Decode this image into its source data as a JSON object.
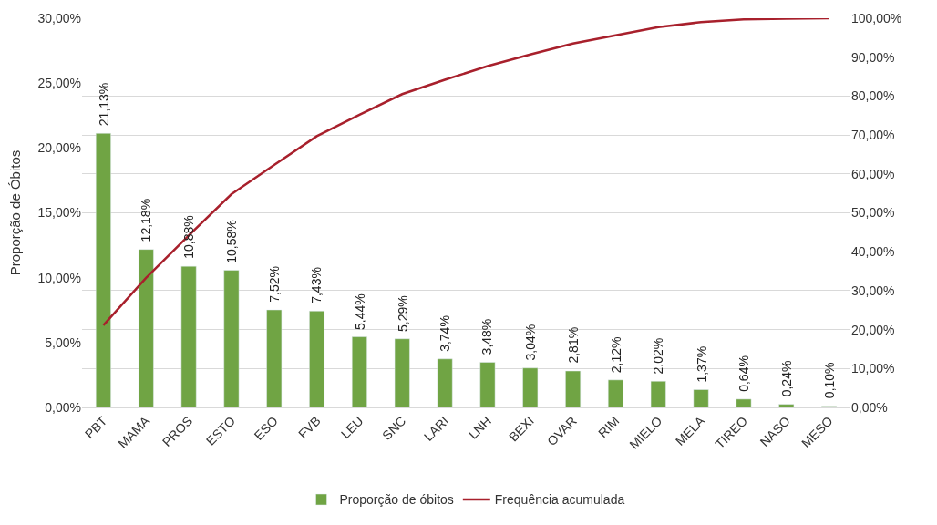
{
  "chart_data": {
    "type": "bar",
    "ylabel": "Proporção de Óbitos",
    "categories": [
      "PBT",
      "MAMA",
      "PROS",
      "ESTO",
      "ESO",
      "FVB",
      "LEU",
      "SNC",
      "LARI",
      "LNH",
      "BEXI",
      "OVAR",
      "RIM",
      "MIELO",
      "MELA",
      "TIREO",
      "NASO",
      "MESO"
    ],
    "series": [
      {
        "name": "Proporção de óbitos",
        "color": "#70a444",
        "values": [
          21.13,
          12.18,
          10.88,
          10.58,
          7.52,
          7.43,
          5.44,
          5.29,
          3.74,
          3.48,
          3.04,
          2.81,
          2.12,
          2.02,
          1.37,
          0.64,
          0.24,
          0.1
        ],
        "value_labels": [
          "21,13%",
          "12,18%",
          "10,88%",
          "10,58%",
          "7,52%",
          "7,43%",
          "5,44%",
          "5,29%",
          "3,74%",
          "3,48%",
          "3,04%",
          "2,81%",
          "2,12%",
          "2,02%",
          "1,37%",
          "0,64%",
          "0,24%",
          "0,10%"
        ]
      },
      {
        "name": "Frequência acumulada",
        "type": "line",
        "axis": "y2",
        "color": "#a8202c",
        "values": [
          21.1,
          33.3,
          44.2,
          54.8,
          62.3,
          69.7,
          75.2,
          80.5,
          84.2,
          87.7,
          90.7,
          93.5,
          95.6,
          97.7,
          99.0,
          99.7,
          99.9,
          100.0
        ]
      }
    ],
    "ylim": [
      0,
      30
    ],
    "yticks": [
      {
        "value": 0,
        "label": "0,00%"
      },
      {
        "value": 5,
        "label": "5,00%"
      },
      {
        "value": 10,
        "label": "10,00%"
      },
      {
        "value": 15,
        "label": "15,00%"
      },
      {
        "value": 20,
        "label": "20,00%"
      },
      {
        "value": 25,
        "label": "25,00%"
      },
      {
        "value": 30,
        "label": "30,00%"
      }
    ],
    "y2lim": [
      0,
      100
    ],
    "y2ticks": [
      {
        "value": 0,
        "label": "0,00%"
      },
      {
        "value": 10,
        "label": "10,00%"
      },
      {
        "value": 20,
        "label": "20,00%"
      },
      {
        "value": 30,
        "label": "30,00%"
      },
      {
        "value": 40,
        "label": "40,00%"
      },
      {
        "value": 50,
        "label": "50,00%"
      },
      {
        "value": 60,
        "label": "60,00%"
      },
      {
        "value": 70,
        "label": "70,00%"
      },
      {
        "value": 80,
        "label": "80,00%"
      },
      {
        "value": 90,
        "label": "90,00%"
      },
      {
        "value": 100,
        "label": "100,00%"
      }
    ],
    "grid": "y",
    "legend": "bottom",
    "marker": "none"
  }
}
